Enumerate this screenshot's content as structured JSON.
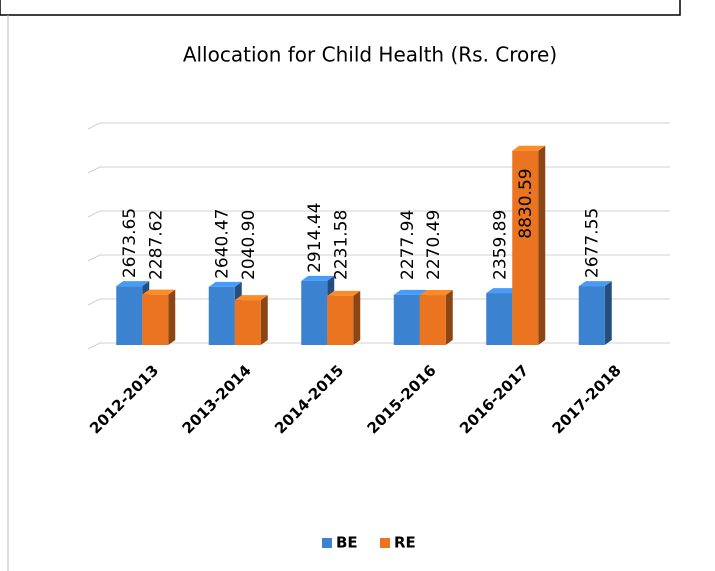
{
  "chart_data": {
    "type": "bar3d",
    "title": "Allocation for Child Health (Rs. Crore)",
    "categories": [
      "2012-2013",
      "2013-2014",
      "2014-2015",
      "2015-2016",
      "2016-2017",
      "2017-2018"
    ],
    "series": [
      {
        "name": "BE",
        "color": "#3b82d0",
        "values": [
          2673.65,
          2640.47,
          2914.44,
          2277.94,
          2359.89,
          2677.55
        ],
        "value_labels": [
          "2673.65",
          "2640.47",
          "2914.44",
          "2277.94",
          "2359.89",
          "2677.55"
        ]
      },
      {
        "name": "RE",
        "color": "#ea7420",
        "values": [
          2287.62,
          2040.9,
          2231.58,
          2270.49,
          8830.59,
          null
        ],
        "value_labels": [
          "2287.62",
          "2040.90",
          "2231.58",
          "2270.49",
          "8830.59",
          null
        ]
      }
    ],
    "ylim": [
      0,
      10000
    ],
    "yticks": [
      0,
      2000,
      4000,
      6000,
      8000,
      10000
    ],
    "grid": true,
    "legend": "bottom"
  }
}
